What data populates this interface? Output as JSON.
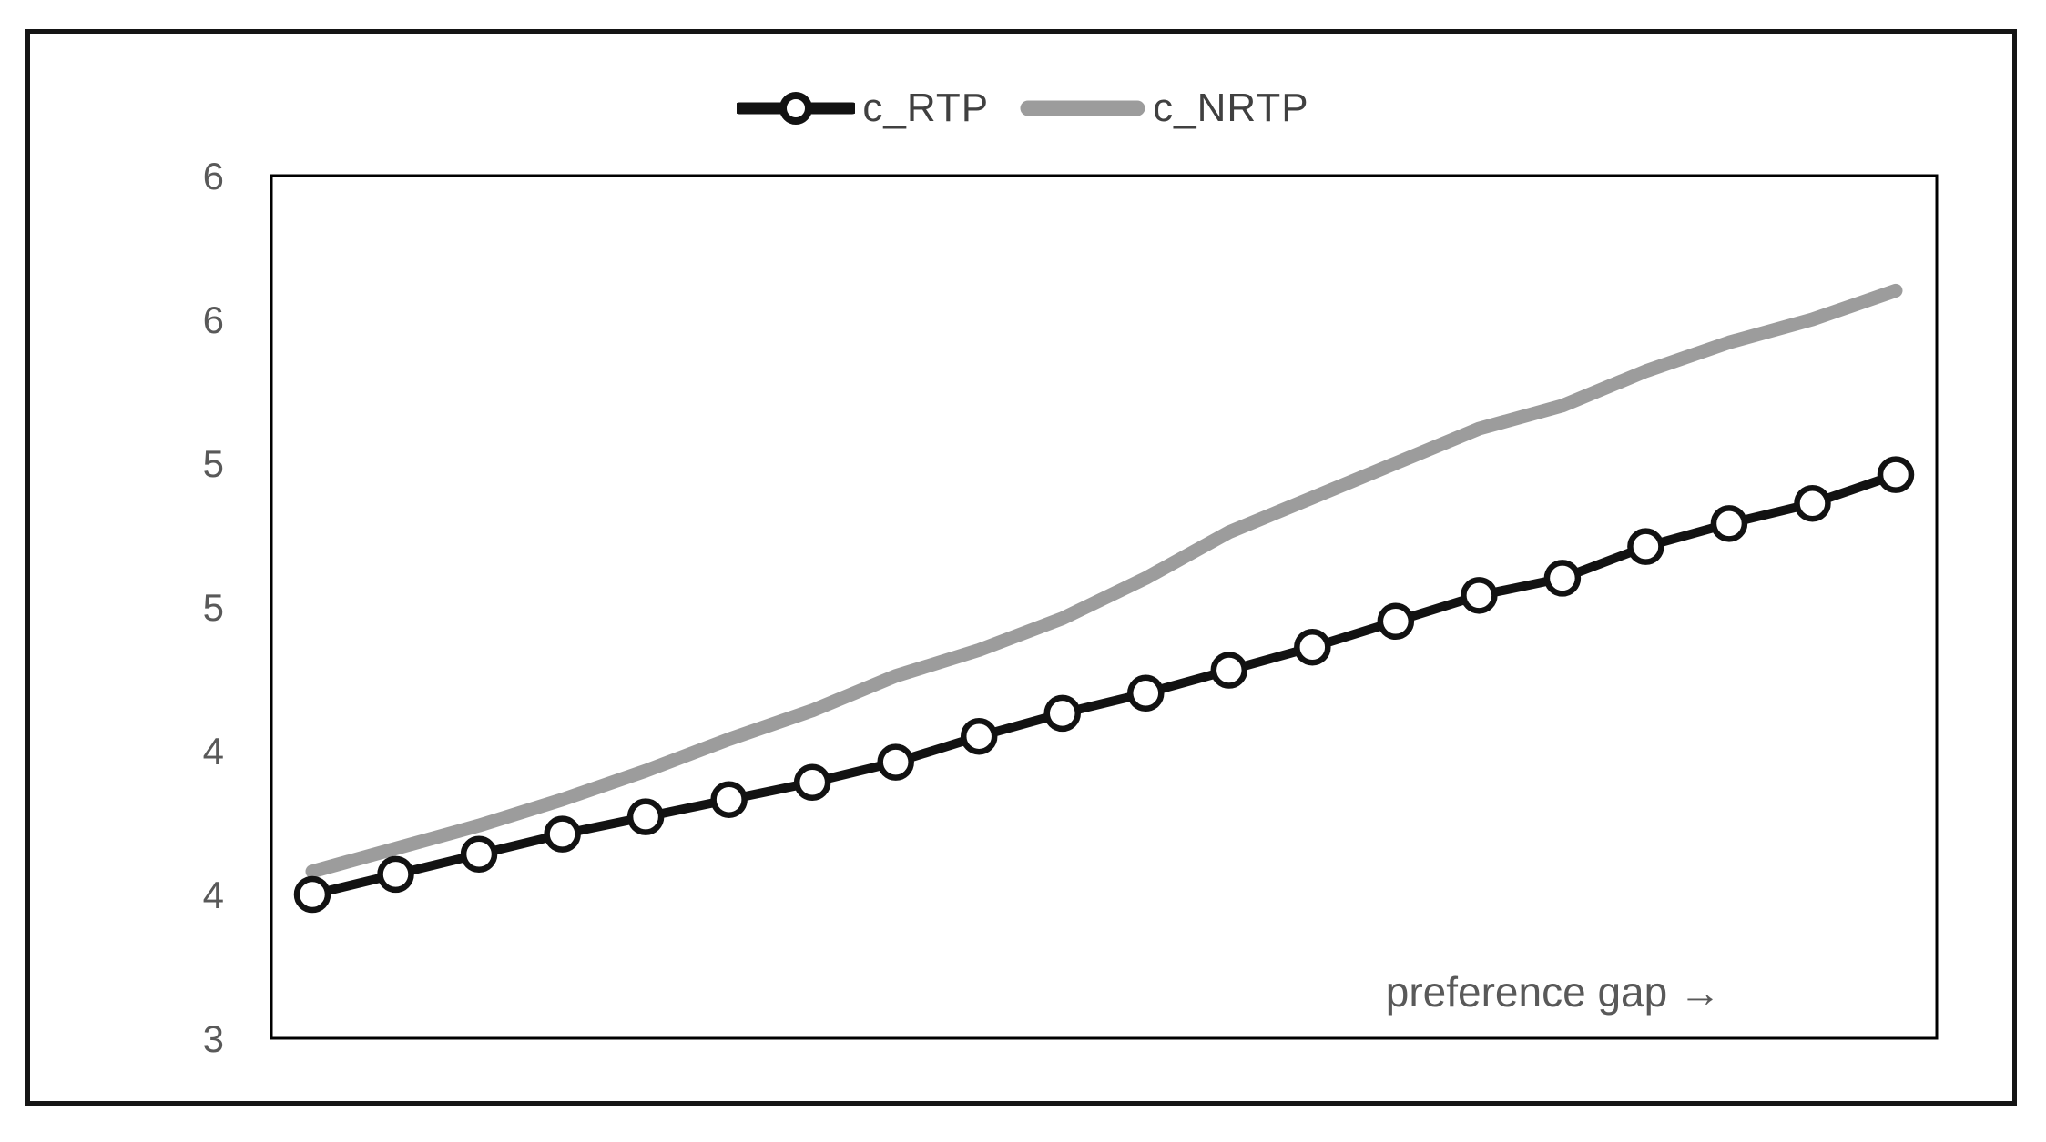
{
  "chart_data": {
    "type": "line",
    "title": "",
    "xlabel": "",
    "ylabel": "",
    "annotation": "preference gap →",
    "grid": false,
    "legend_position": "top-center",
    "x_axis": {
      "tick_labels_visible": false,
      "point_count": 20
    },
    "y_axis": {
      "ylim": [
        3,
        6
      ],
      "ticks": [
        {
          "value": 3.0,
          "label": "3"
        },
        {
          "value": 3.5,
          "label": "4"
        },
        {
          "value": 4.0,
          "label": "4"
        },
        {
          "value": 4.5,
          "label": "5"
        },
        {
          "value": 5.0,
          "label": "5"
        },
        {
          "value": 5.5,
          "label": "6"
        },
        {
          "value": 6.0,
          "label": "6"
        }
      ],
      "label_color": "#595959"
    },
    "series": [
      {
        "name": "c_RTP",
        "color": "#121212",
        "marker": "open-circle",
        "marker_fill": "#ffffff",
        "values": [
          3.5,
          3.57,
          3.64,
          3.71,
          3.77,
          3.83,
          3.89,
          3.96,
          4.05,
          4.13,
          4.2,
          4.28,
          4.36,
          4.45,
          4.54,
          4.6,
          4.71,
          4.79,
          4.86,
          4.96
        ]
      },
      {
        "name": "c_NRTP",
        "color": "#9c9c9c",
        "marker": "none",
        "values": [
          3.58,
          3.66,
          3.74,
          3.83,
          3.93,
          4.04,
          4.14,
          4.26,
          4.35,
          4.46,
          4.6,
          4.76,
          4.88,
          5.0,
          5.12,
          5.2,
          5.32,
          5.42,
          5.5,
          5.6
        ]
      }
    ],
    "colors": {
      "plot_border": "#000000",
      "figure_border": "#151515",
      "background": "#ffffff",
      "annotation_text": "#595959",
      "legend_text": "#404040"
    }
  }
}
